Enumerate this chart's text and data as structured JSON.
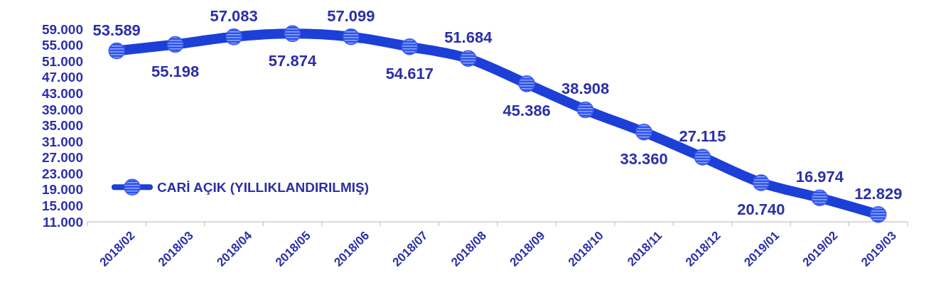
{
  "chart_data": {
    "type": "line",
    "categories": [
      "2018/02",
      "2018/03",
      "2018/04",
      "2018/05",
      "2018/06",
      "2018/07",
      "2018/08",
      "2018/09",
      "2018/10",
      "2018/11",
      "2018/12",
      "2019/01",
      "2019/02",
      "2019/03"
    ],
    "series": [
      {
        "name": "CARİ AÇIK (YILLIKLANDIRILMIŞ)",
        "color": "#1c3fd8",
        "values": [
          53589,
          55198,
          57083,
          57874,
          57099,
          54617,
          51684,
          45386,
          38908,
          33360,
          27115,
          20740,
          16974,
          12829
        ],
        "value_labels": [
          "53.589",
          "55.198",
          "57.083",
          "57.874",
          "57.099",
          "54.617",
          "51.684",
          "45.386",
          "38.908",
          "33.360",
          "27.115",
          "20.740",
          "16.974",
          "12.829"
        ]
      }
    ],
    "ylim": [
      11000,
      59000
    ],
    "yticks": [
      {
        "value": 11000,
        "label": "11.000"
      },
      {
        "value": 15000,
        "label": "15.000"
      },
      {
        "value": 19000,
        "label": "19.000"
      },
      {
        "value": 23000,
        "label": "23.000"
      },
      {
        "value": 27000,
        "label": "27.000"
      },
      {
        "value": 31000,
        "label": "31.000"
      },
      {
        "value": 35000,
        "label": "35.000"
      },
      {
        "value": 39000,
        "label": "39.000"
      },
      {
        "value": 43000,
        "label": "43.000"
      },
      {
        "value": 47000,
        "label": "47.000"
      },
      {
        "value": 51000,
        "label": "51.000"
      },
      {
        "value": 55000,
        "label": "55.000"
      },
      {
        "value": 59000,
        "label": "59.000"
      }
    ],
    "legend": "left",
    "marker": "circle",
    "line_style": "solid"
  }
}
